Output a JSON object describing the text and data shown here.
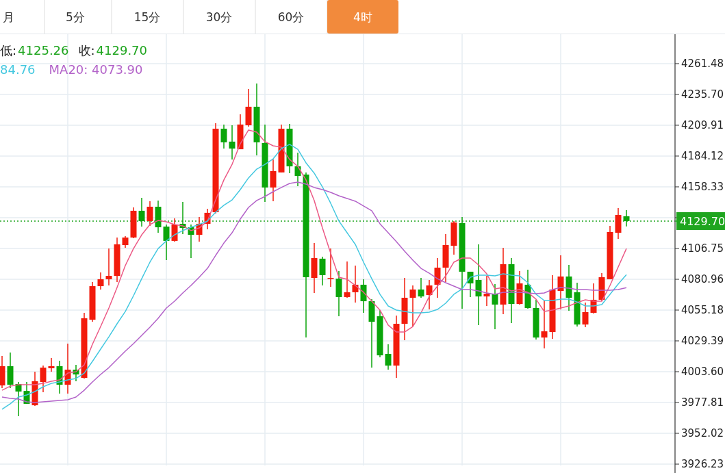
{
  "chart_data": {
    "type": "candlestick",
    "annotations": [
      "月",
      "5分",
      "15分",
      "30分",
      "60分",
      "4时",
      "低:",
      "4125.26",
      "收:",
      "4129.70",
      "84.76",
      "MA20:  4073.90"
    ],
    "categories": [
      null,
      null,
      null,
      null,
      null,
      null,
      null,
      null,
      null,
      null,
      null,
      null,
      null,
      null,
      null,
      null,
      null,
      null,
      null,
      null,
      null,
      null,
      null,
      null,
      null,
      null,
      null,
      null,
      null,
      null,
      null,
      null,
      null,
      null,
      null,
      null,
      null,
      null,
      null,
      null,
      null,
      null,
      null,
      null,
      null,
      null,
      null,
      null,
      null,
      null,
      null,
      null,
      null,
      null,
      null,
      null,
      null,
      null,
      null,
      null,
      null,
      null,
      null,
      null,
      null,
      null,
      null,
      null,
      null,
      null,
      null,
      null,
      null,
      null,
      null,
      null,
      null
    ],
    "ohlc": [
      [
        3992.1,
        4016.8,
        3989.8,
        4008.2
      ],
      [
        4008.2,
        4019.6,
        3989.8,
        3992.7
      ],
      [
        3993.3,
        3995.0,
        3966.3,
        3987.0
      ],
      [
        3987.5,
        3995.0,
        3976.7,
        3976.7
      ],
      [
        3975.5,
        4003.6,
        3974.9,
        3995.6
      ],
      [
        3995.0,
        4008.7,
        3986.4,
        4007.0
      ],
      [
        4006.5,
        4015.1,
        4003.6,
        4008.2
      ],
      [
        4008.2,
        4012.8,
        3985.3,
        3992.7
      ],
      [
        3992.7,
        4027.1,
        3985.3,
        4005.3
      ],
      [
        4005.3,
        4009.3,
        3995.6,
        4001.3
      ],
      [
        3998.4,
        4052.9,
        3997.9,
        4048.3
      ],
      [
        4047.1,
        4078.7,
        4045.4,
        4075.2
      ],
      [
        4075.2,
        4086.7,
        4072.4,
        4081.0
      ],
      [
        4081.0,
        4106.7,
        4075.8,
        4083.8
      ],
      [
        4083.8,
        4115.9,
        4078.7,
        4110.2
      ],
      [
        4109.6,
        4117.1,
        4107.3,
        4115.9
      ],
      [
        4115.9,
        4141.1,
        4115.3,
        4138.3
      ],
      [
        4138.3,
        4149.2,
        4125.1,
        4129.7
      ],
      [
        4129.7,
        4146.3,
        4125.7,
        4141.7
      ],
      [
        4141.7,
        4146.9,
        4119.9,
        4124.5
      ],
      [
        4125.1,
        4126.8,
        4097.0,
        4113.1
      ],
      [
        4113.1,
        4132.0,
        4112.5,
        4126.8
      ],
      [
        4127.4,
        4145.7,
        4118.8,
        4123.9
      ],
      [
        4124.5,
        4126.8,
        4098.7,
        4118.2
      ],
      [
        4118.2,
        4133.1,
        4112.5,
        4127.4
      ],
      [
        4127.4,
        4140.0,
        4122.8,
        4136.6
      ],
      [
        4137.1,
        4211.6,
        4136.0,
        4207.0
      ],
      [
        4207.0,
        4210.5,
        4190.4,
        4195.6
      ],
      [
        4196.2,
        4209.9,
        4181.3,
        4190.4
      ],
      [
        4189.8,
        4219.1,
        4189.8,
        4210.5
      ],
      [
        4209.9,
        4240.3,
        4208.8,
        4225.4
      ],
      [
        4225.4,
        4244.9,
        4184.7,
        4195.6
      ],
      [
        4195.0,
        4210.5,
        4145.7,
        4157.8
      ],
      [
        4157.8,
        4181.3,
        4146.3,
        4171.5
      ],
      [
        4170.4,
        4210.5,
        4170.4,
        4207.0
      ],
      [
        4207.0,
        4211.1,
        4169.8,
        4175.5
      ],
      [
        4175.5,
        4187.0,
        4158.9,
        4167.5
      ],
      [
        4168.6,
        4170.4,
        4032.2,
        4082.7
      ],
      [
        4082.1,
        4111.3,
        4069.5,
        4098.7
      ],
      [
        4098.2,
        4099.9,
        4075.8,
        4084.4
      ],
      [
        4082.1,
        4106.7,
        4074.7,
        4082.1
      ],
      [
        4081.5,
        4087.8,
        4050.0,
        4066.1
      ],
      [
        4066.1,
        4095.9,
        4065.5,
        4070.1
      ],
      [
        4070.1,
        4092.4,
        4061.5,
        4076.4
      ],
      [
        4076.4,
        4081.0,
        4052.9,
        4062.6
      ],
      [
        4062.6,
        4064.3,
        4007.0,
        4045.4
      ],
      [
        4050.0,
        4055.2,
        4015.6,
        4017.3
      ],
      [
        4018.5,
        4026.5,
        4005.3,
        4008.7
      ],
      [
        4008.7,
        4050.6,
        3998.4,
        4043.7
      ],
      [
        4043.7,
        4082.1,
        4030.0,
        4065.5
      ],
      [
        4065.5,
        4075.8,
        4041.4,
        4072.4
      ],
      [
        4072.4,
        4082.1,
        4065.5,
        4066.6
      ],
      [
        4067.8,
        4080.4,
        4055.7,
        4075.8
      ],
      [
        4076.4,
        4098.7,
        4065.5,
        4090.7
      ],
      [
        4090.7,
        4118.8,
        4078.7,
        4109.6
      ],
      [
        4109.0,
        4129.7,
        4101.6,
        4128.5
      ],
      [
        4128.0,
        4133.1,
        4056.3,
        4087.3
      ],
      [
        4087.3,
        4087.3,
        4066.1,
        4077.5
      ],
      [
        4080.4,
        4110.2,
        4042.6,
        4066.6
      ],
      [
        4066.6,
        4083.8,
        4058.6,
        4068.9
      ],
      [
        4068.4,
        4076.9,
        4039.1,
        4059.8
      ],
      [
        4059.8,
        4107.3,
        4051.7,
        4093.6
      ],
      [
        4093.6,
        4098.7,
        4044.3,
        4060.3
      ],
      [
        4060.3,
        4087.8,
        4059.8,
        4077.5
      ],
      [
        4076.4,
        4089.0,
        4056.3,
        4056.9
      ],
      [
        4056.9,
        4063.8,
        4030.5,
        4032.2
      ],
      [
        4032.2,
        4063.2,
        4023.1,
        4037.4
      ],
      [
        4036.8,
        4084.4,
        4031.1,
        4072.4
      ],
      [
        4071.2,
        4101.0,
        4055.7,
        4083.3
      ],
      [
        4083.3,
        4093.0,
        4054.6,
        4065.5
      ],
      [
        4070.1,
        4078.1,
        4041.4,
        4043.1
      ],
      [
        4043.1,
        4061.5,
        4040.8,
        4053.5
      ],
      [
        4052.9,
        4077.5,
        4052.3,
        4063.8
      ],
      [
        4063.8,
        4086.1,
        4062.6,
        4082.7
      ],
      [
        4081.0,
        4125.7,
        4081.0,
        4120.5
      ],
      [
        4119.9,
        4140.6,
        4114.8,
        4134.8
      ],
      [
        4133.7,
        4138.8,
        4125.26,
        4129.7
      ]
    ],
    "colors": [
      "#f21b0c",
      "#0aa50a",
      "#0aa50a",
      "#0aa50a",
      "#f21b0c",
      "#f21b0c",
      "#f21b0c",
      "#0aa50a",
      "#f21b0c",
      "#0aa50a",
      "#f21b0c",
      "#f21b0c",
      "#f21b0c",
      "#f21b0c",
      "#f21b0c",
      "#f21b0c",
      "#f21b0c",
      "#0aa50a",
      "#f21b0c",
      "#0aa50a",
      "#0aa50a",
      "#f21b0c",
      "#0aa50a",
      "#0aa50a",
      "#f21b0c",
      "#f21b0c",
      "#f21b0c",
      "#0aa50a",
      "#0aa50a",
      "#f21b0c",
      "#f21b0c",
      "#0aa50a",
      "#0aa50a",
      "#f21b0c",
      "#f21b0c",
      "#0aa50a",
      "#0aa50a",
      "#0aa50a",
      "#f21b0c",
      "#0aa50a",
      "#f21b0c",
      "#0aa50a",
      "#f21b0c",
      "#f21b0c",
      "#0aa50a",
      "#0aa50a",
      "#0aa50a",
      "#0aa50a",
      "#f21b0c",
      "#f21b0c",
      "#f21b0c",
      "#0aa50a",
      "#f21b0c",
      "#f21b0c",
      "#f21b0c",
      "#f21b0c",
      "#0aa50a",
      "#0aa50a",
      "#0aa50a",
      "#f21b0c",
      "#0aa50a",
      "#f21b0c",
      "#0aa50a",
      "#f21b0c",
      "#0aa50a",
      "#0aa50a",
      "#f21b0c",
      "#f21b0c",
      "#f21b0c",
      "#0aa50a",
      "#0aa50a",
      "#f21b0c",
      "#f21b0c",
      "#f21b0c",
      "#f21b0c",
      "#f21b0c",
      "#0aa50a"
    ],
    "series": [
      {
        "type": "line",
        "color": "#ec5a86",
        "values": [
          3988.1,
          3991.5,
          3992.7,
          3992.7,
          3992.7,
          3993.8,
          3995.6,
          3996.7,
          4002.4,
          4003.6,
          4009.3,
          4026.5,
          4041.4,
          4056.9,
          4074.1,
          4092.4,
          4106.7,
          4118.2,
          4126.8,
          4130.2,
          4129.1,
          4126.8,
          4125.7,
          4121.7,
          4123.9,
          4129.7,
          4147.4,
          4164.1,
          4177.2,
          4194.4,
          4205.9,
          4204.2,
          4196.2,
          4192.7,
          4191.6,
          4181.3,
          4175.5,
          4164.1,
          4146.9,
          4123.9,
          4102.7,
          4082.7,
          4081.0,
          4075.8,
          4070.1,
          4062.6,
          4055.2,
          4042.6,
          4036.8,
          4036.8,
          4041.4,
          4052.9,
          4066.6,
          4075.2,
          4083.8,
          4095.3,
          4098.7,
          4098.7,
          4093.0,
          4085.5,
          4072.9,
          4074.1,
          4071.2,
          4072.4,
          4070.1,
          4064.3,
          4054.0,
          4055.2,
          4056.9,
          4058.6,
          4061.5,
          4063.8,
          4062.6,
          4062.6,
          4075.8,
          4091.3,
          4106.7
        ]
      },
      {
        "type": "line",
        "color": "#45c8e0",
        "values": [
          3972.1,
          3976.7,
          3982.4,
          3984.1,
          3987.0,
          3991.0,
          3993.8,
          3995.0,
          3996.7,
          3997.9,
          4002.4,
          4012.2,
          4022.5,
          4032.8,
          4043.7,
          4054.0,
          4067.2,
          4081.5,
          4095.3,
          4106.7,
          4113.1,
          4118.2,
          4121.7,
          4124.5,
          4126.8,
          4129.7,
          4137.1,
          4142.9,
          4147.4,
          4156.0,
          4165.8,
          4173.2,
          4177.2,
          4181.8,
          4190.4,
          4193.9,
          4189.8,
          4178.4,
          4169.8,
          4158.3,
          4144.6,
          4129.7,
          4119.9,
          4110.2,
          4095.3,
          4081.5,
          4068.4,
          4058.6,
          4055.2,
          4054.0,
          4052.9,
          4052.9,
          4053.5,
          4055.7,
          4060.9,
          4068.4,
          4072.9,
          4082.7,
          4084.4,
          4084.4,
          4083.8,
          4085.5,
          4084.4,
          4083.8,
          4078.1,
          4068.4,
          4063.2,
          4063.2,
          4064.3,
          4064.3,
          4062.0,
          4058.6,
          4058.6,
          4059.8,
          4068.4,
          4076.9,
          4084.8
        ]
      },
      {
        "type": "line",
        "color": "#b363c9",
        "values": [
          3982.4,
          3981.2,
          3980.7,
          3978.4,
          3977.8,
          3978.4,
          3978.9,
          3979.5,
          3980.1,
          3982.4,
          3988.1,
          3995.0,
          4001.3,
          4007.0,
          4013.9,
          4020.8,
          4027.1,
          4034.0,
          4040.8,
          4048.3,
          4056.9,
          4062.6,
          4069.5,
          4075.8,
          4082.7,
          4090.1,
          4101.0,
          4111.3,
          4119.9,
          4131.4,
          4141.1,
          4146.9,
          4150.3,
          4154.3,
          4157.8,
          4161.2,
          4162.3,
          4160.6,
          4157.8,
          4156.0,
          4153.7,
          4150.9,
          4148.6,
          4146.3,
          4142.3,
          4138.3,
          4127.4,
          4119.9,
          4112.5,
          4104.5,
          4097.0,
          4090.1,
          4086.1,
          4081.5,
          4078.1,
          4075.2,
          4072.4,
          4072.4,
          4071.2,
          4069.5,
          4068.4,
          4070.1,
          4070.1,
          4070.1,
          4069.5,
          4068.9,
          4069.5,
          4072.4,
          4074.1,
          4073.5,
          4072.4,
          4072.4,
          4071.8,
          4071.8,
          4071.8,
          4072.4,
          4073.9
        ]
      }
    ],
    "ylim": [
      3925.1,
      4286.1
    ],
    "yticks": [
      4261.48,
      {
        "value": 4235.7,
        "label": "4235.70"
      },
      4209.91,
      4184.12,
      4158.33,
      {
        "value": 4132.54,
        "label": null
      },
      4106.75,
      4080.96,
      4055.18,
      4029.39,
      {
        "value": 4003.6,
        "label": "4003.60"
      },
      3977.81,
      3952.02,
      3926.23
    ],
    "ref_lines": [
      {
        "axis": "y",
        "value": 4129.7,
        "label": "4129.70",
        "color": "#1fa51f",
        "line_style": "dotted"
      }
    ],
    "grid": true,
    "tick_labels": "y"
  }
}
